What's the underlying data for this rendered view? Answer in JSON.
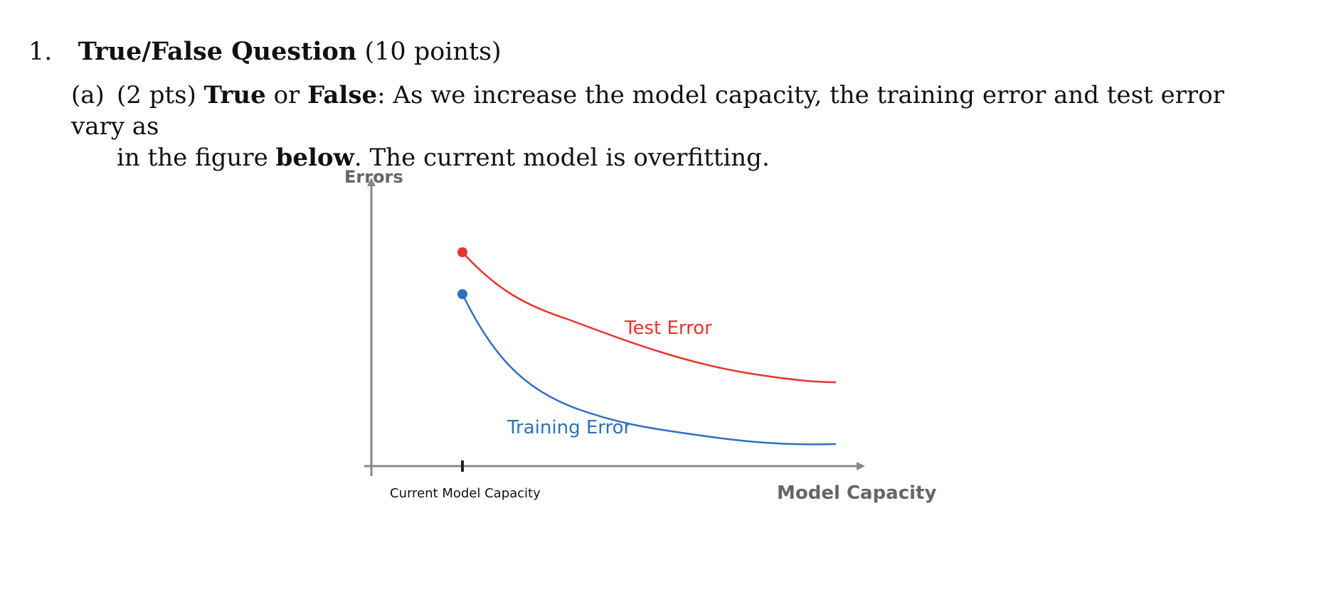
{
  "question": {
    "number": "1.",
    "title": "True/False Question",
    "points": "(10 points)"
  },
  "part_a": {
    "label": "(a)",
    "pts": "(2 pts)",
    "true_word": "True",
    "or_word": "or",
    "false_word": "False",
    "text_1": ": As we increase the model capacity, the training error and test error vary as",
    "text_2": "in the figure",
    "below_word": "below",
    "text_3": ". The current model is overfitting."
  },
  "chart_data": {
    "type": "line",
    "ylabel": "Errors",
    "xlabel": "Model Capacity",
    "tick_label": "Current Model Capacity",
    "series": [
      {
        "name": "Test Error",
        "color": "#e8342c"
      },
      {
        "name": "Training Error",
        "color": "#2f6fbf"
      }
    ],
    "axis_color": "#888888"
  }
}
